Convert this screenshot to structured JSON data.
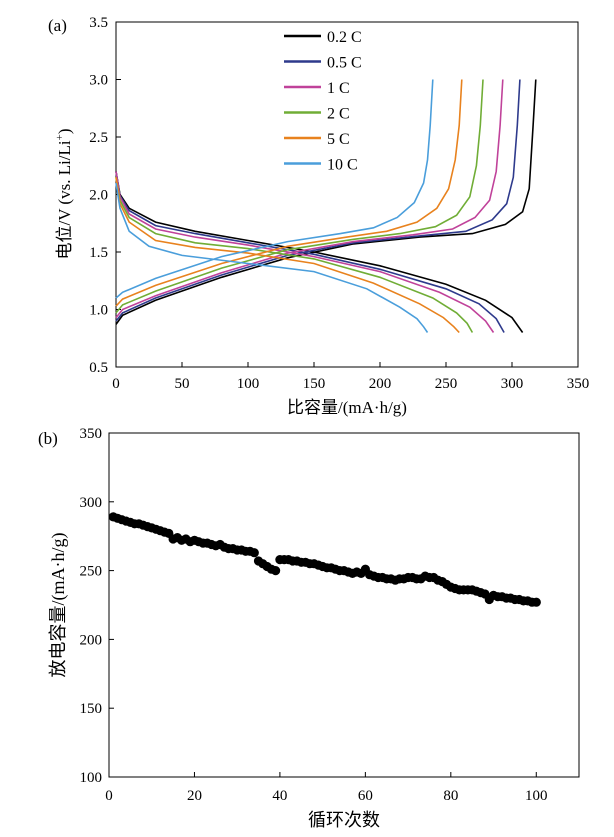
{
  "chart_data": [
    {
      "type": "line",
      "panel_label": "(a)",
      "xlabel": "比容量/(mA·h/g)",
      "ylabel": "电位/V (vs. Li/Li",
      "ylabel_sup": "+",
      "ylabel_end": ")",
      "xlim": [
        0,
        350
      ],
      "ylim": [
        0.5,
        3.5
      ],
      "x_ticks": [
        "0",
        "50",
        "100",
        "150",
        "200",
        "250",
        "300",
        "350"
      ],
      "y_ticks": [
        "0.5",
        "1.0",
        "1.5",
        "2.0",
        "2.5",
        "3.0",
        "3.5"
      ],
      "grid": false,
      "legend_position": "top-center",
      "series": [
        {
          "name": "0.2 C",
          "color": "#000000",
          "discharge": [
            [
              0,
              2.2
            ],
            [
              3,
              2.0
            ],
            [
              10,
              1.88
            ],
            [
              30,
              1.76
            ],
            [
              60,
              1.68
            ],
            [
              100,
              1.6
            ],
            [
              150,
              1.5
            ],
            [
              200,
              1.38
            ],
            [
              250,
              1.22
            ],
            [
              280,
              1.08
            ],
            [
              300,
              0.93
            ],
            [
              308,
              0.8
            ]
          ],
          "charge": [
            [
              0,
              0.87
            ],
            [
              5,
              0.95
            ],
            [
              30,
              1.08
            ],
            [
              80,
              1.28
            ],
            [
              130,
              1.45
            ],
            [
              180,
              1.57
            ],
            [
              230,
              1.63
            ],
            [
              270,
              1.66
            ],
            [
              295,
              1.74
            ],
            [
              308,
              1.85
            ],
            [
              313,
              2.05
            ],
            [
              316,
              2.6
            ],
            [
              318,
              3.0
            ]
          ]
        },
        {
          "name": "0.5 C",
          "color": "#2e3a8c",
          "discharge": [
            [
              0,
              2.2
            ],
            [
              3,
              1.99
            ],
            [
              10,
              1.86
            ],
            [
              30,
              1.73
            ],
            [
              60,
              1.66
            ],
            [
              100,
              1.58
            ],
            [
              150,
              1.48
            ],
            [
              200,
              1.35
            ],
            [
              250,
              1.18
            ],
            [
              275,
              1.05
            ],
            [
              288,
              0.92
            ],
            [
              294,
              0.8
            ]
          ],
          "charge": [
            [
              0,
              0.9
            ],
            [
              5,
              0.97
            ],
            [
              30,
              1.1
            ],
            [
              80,
              1.3
            ],
            [
              130,
              1.47
            ],
            [
              180,
              1.58
            ],
            [
              230,
              1.64
            ],
            [
              265,
              1.68
            ],
            [
              285,
              1.78
            ],
            [
              296,
              1.92
            ],
            [
              301,
              2.15
            ],
            [
              304,
              2.6
            ],
            [
              306,
              3.0
            ]
          ]
        },
        {
          "name": "1 C",
          "color": "#c0429a",
          "discharge": [
            [
              0,
              2.2
            ],
            [
              3,
              1.98
            ],
            [
              10,
              1.83
            ],
            [
              30,
              1.7
            ],
            [
              60,
              1.63
            ],
            [
              100,
              1.56
            ],
            [
              150,
              1.46
            ],
            [
              200,
              1.33
            ],
            [
              245,
              1.15
            ],
            [
              268,
              1.02
            ],
            [
              280,
              0.9
            ],
            [
              286,
              0.8
            ]
          ],
          "charge": [
            [
              0,
              0.93
            ],
            [
              5,
              1.0
            ],
            [
              30,
              1.12
            ],
            [
              80,
              1.32
            ],
            [
              130,
              1.49
            ],
            [
              180,
              1.59
            ],
            [
              225,
              1.65
            ],
            [
              255,
              1.7
            ],
            [
              272,
              1.8
            ],
            [
              283,
              1.95
            ],
            [
              288,
              2.2
            ],
            [
              291,
              2.6
            ],
            [
              293,
              3.0
            ]
          ]
        },
        {
          "name": "2 C",
          "color": "#70ad36",
          "discharge": [
            [
              0,
              2.15
            ],
            [
              3,
              1.95
            ],
            [
              10,
              1.8
            ],
            [
              30,
              1.66
            ],
            [
              60,
              1.58
            ],
            [
              100,
              1.53
            ],
            [
              150,
              1.44
            ],
            [
              200,
              1.28
            ],
            [
              240,
              1.1
            ],
            [
              258,
              0.97
            ],
            [
              266,
              0.88
            ],
            [
              270,
              0.8
            ]
          ],
          "charge": [
            [
              0,
              0.97
            ],
            [
              5,
              1.04
            ],
            [
              30,
              1.16
            ],
            [
              80,
              1.36
            ],
            [
              130,
              1.52
            ],
            [
              180,
              1.61
            ],
            [
              215,
              1.66
            ],
            [
              242,
              1.72
            ],
            [
              258,
              1.82
            ],
            [
              268,
              1.98
            ],
            [
              273,
              2.25
            ],
            [
              276,
              2.6
            ],
            [
              278,
              3.0
            ]
          ]
        },
        {
          "name": "5 C",
          "color": "#e8821e",
          "discharge": [
            [
              0,
              2.15
            ],
            [
              3,
              1.92
            ],
            [
              10,
              1.76
            ],
            [
              30,
              1.6
            ],
            [
              60,
              1.54
            ],
            [
              100,
              1.49
            ],
            [
              150,
              1.4
            ],
            [
              195,
              1.23
            ],
            [
              230,
              1.05
            ],
            [
              248,
              0.93
            ],
            [
              256,
              0.85
            ],
            [
              260,
              0.8
            ]
          ],
          "charge": [
            [
              0,
              1.03
            ],
            [
              5,
              1.09
            ],
            [
              30,
              1.21
            ],
            [
              80,
              1.4
            ],
            [
              130,
              1.55
            ],
            [
              175,
              1.63
            ],
            [
              205,
              1.68
            ],
            [
              228,
              1.76
            ],
            [
              243,
              1.88
            ],
            [
              252,
              2.05
            ],
            [
              257,
              2.3
            ],
            [
              260,
              2.6
            ],
            [
              262,
              3.0
            ]
          ]
        },
        {
          "name": "10 C",
          "color": "#4a9edb",
          "discharge": [
            [
              0,
              2.1
            ],
            [
              3,
              1.88
            ],
            [
              10,
              1.68
            ],
            [
              25,
              1.55
            ],
            [
              50,
              1.47
            ],
            [
              100,
              1.4
            ],
            [
              150,
              1.33
            ],
            [
              190,
              1.18
            ],
            [
              215,
              1.02
            ],
            [
              228,
              0.92
            ],
            [
              233,
              0.85
            ],
            [
              236,
              0.8
            ]
          ],
          "charge": [
            [
              0,
              1.1
            ],
            [
              5,
              1.15
            ],
            [
              30,
              1.27
            ],
            [
              80,
              1.46
            ],
            [
              130,
              1.59
            ],
            [
              170,
              1.66
            ],
            [
              195,
              1.71
            ],
            [
              213,
              1.8
            ],
            [
              226,
              1.93
            ],
            [
              233,
              2.1
            ],
            [
              236,
              2.3
            ],
            [
              238,
              2.6
            ],
            [
              240,
              3.0
            ]
          ]
        }
      ]
    },
    {
      "type": "scatter",
      "panel_label": "(b)",
      "xlabel": "循环次数",
      "ylabel": "放电容量/(mA·h/g)",
      "xlim": [
        0,
        110
      ],
      "ylim": [
        100,
        350
      ],
      "x_ticks": [
        "0",
        "20",
        "40",
        "60",
        "80",
        "100"
      ],
      "y_ticks": [
        "100",
        "150",
        "200",
        "250",
        "300",
        "350"
      ],
      "grid": false,
      "color": "#000000",
      "x": [
        1,
        2,
        3,
        4,
        5,
        6,
        7,
        8,
        9,
        10,
        11,
        12,
        13,
        14,
        15,
        16,
        17,
        18,
        19,
        20,
        21,
        22,
        23,
        24,
        25,
        26,
        27,
        28,
        29,
        30,
        31,
        32,
        33,
        34,
        35,
        36,
        37,
        38,
        39,
        40,
        41,
        42,
        43,
        44,
        45,
        46,
        47,
        48,
        49,
        50,
        51,
        52,
        53,
        54,
        55,
        56,
        57,
        58,
        59,
        60,
        61,
        62,
        63,
        64,
        65,
        66,
        67,
        68,
        69,
        70,
        71,
        72,
        73,
        74,
        75,
        76,
        77,
        78,
        79,
        80,
        81,
        82,
        83,
        84,
        85,
        86,
        87,
        88,
        89,
        90,
        91,
        92,
        93,
        94,
        95,
        96,
        97,
        98,
        99,
        100
      ],
      "y": [
        289,
        288,
        287,
        286,
        285,
        284,
        284,
        283,
        282,
        281,
        280,
        279,
        278,
        277,
        273,
        274,
        272,
        273,
        271,
        272,
        271,
        270,
        270,
        269,
        268,
        269,
        267,
        266,
        266,
        265,
        265,
        264,
        264,
        263,
        257,
        255,
        253,
        251,
        250,
        258,
        258,
        258,
        257,
        257,
        256,
        256,
        255,
        255,
        254,
        253,
        252,
        252,
        251,
        250,
        250,
        249,
        248,
        249,
        248,
        251,
        247,
        246,
        245,
        245,
        244,
        244,
        243,
        244,
        244,
        245,
        245,
        244,
        244,
        246,
        245,
        245,
        243,
        242,
        240,
        238,
        237,
        236,
        236,
        236,
        236,
        235,
        234,
        233,
        229,
        232,
        231,
        231,
        230,
        230,
        229,
        229,
        228,
        228,
        227,
        227
      ]
    }
  ]
}
